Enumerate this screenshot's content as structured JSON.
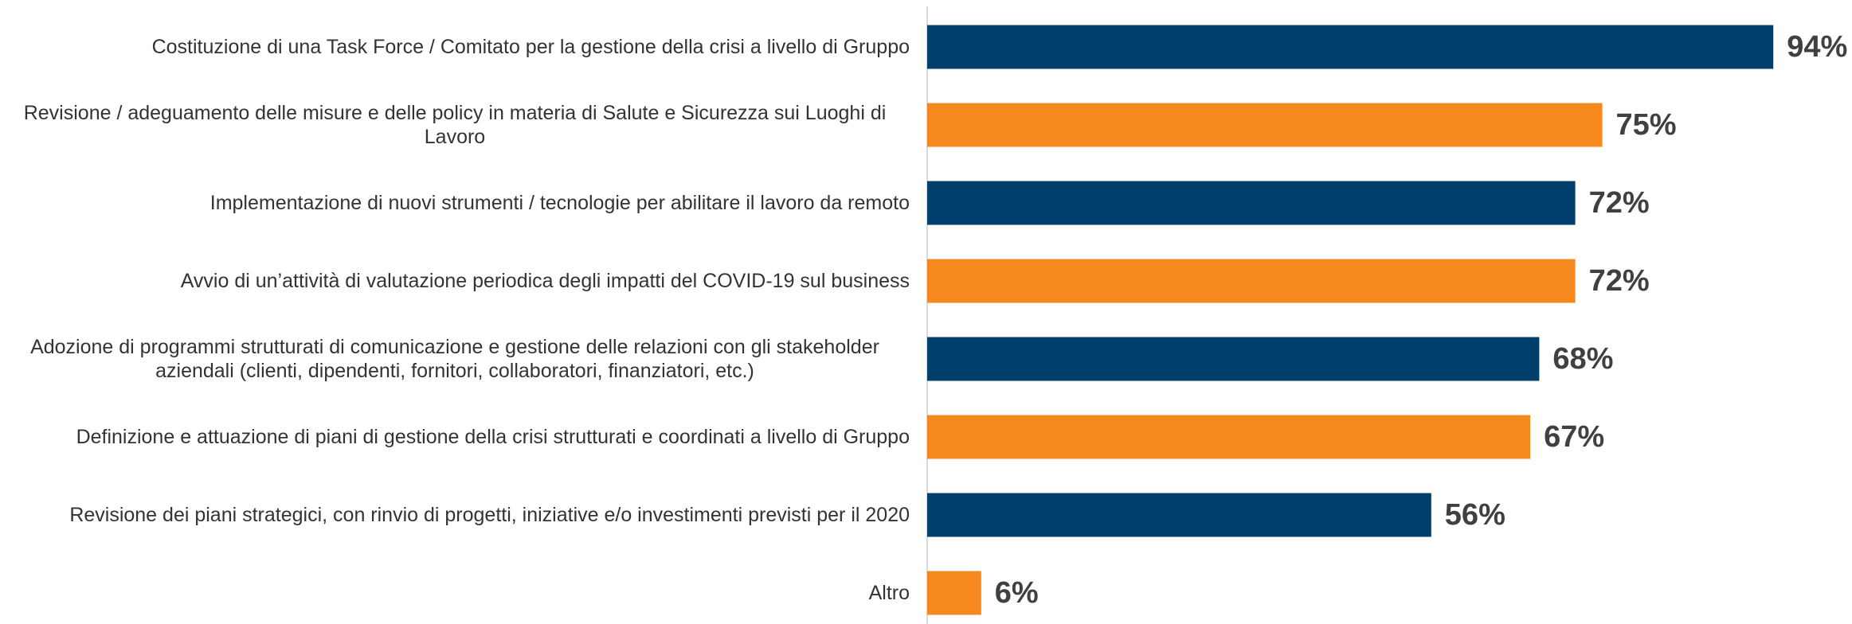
{
  "chart_data": {
    "type": "bar",
    "orientation": "horizontal",
    "categories": [
      "Costituzione di una Task Force / Comitato per la gestione della crisi a livello di Gruppo",
      "Revisione / adeguamento delle misure e delle policy in materia di Salute e Sicurezza sui Luoghi di Lavoro",
      "Implementazione di nuovi strumenti / tecnologie per abilitare il lavoro da remoto",
      "Avvio di un’attività di valutazione periodica degli impatti del COVID-19 sul business",
      "Adozione di programmi strutturati di comunicazione e gestione delle relazioni con gli stakeholder aziendali (clienti, dipendenti, fornitori, collaboratori, finanziatori, etc.)",
      "Definizione e attuazione di piani di gestione della crisi strutturati e coordinati a livello di Gruppo",
      "Revisione dei piani strategici, con rinvio di progetti, iniziative e/o investimenti previsti per il 2020",
      "Altro"
    ],
    "values": [
      94,
      75,
      72,
      72,
      68,
      67,
      56,
      6
    ],
    "value_labels": [
      "94%",
      "75%",
      "72%",
      "72%",
      "68%",
      "67%",
      "56%",
      "6%"
    ],
    "colors": [
      "#003f6b",
      "#f5881f",
      "#003f6b",
      "#f5881f",
      "#003f6b",
      "#f5881f",
      "#003f6b",
      "#f5881f"
    ],
    "xlim": [
      0,
      100
    ]
  }
}
